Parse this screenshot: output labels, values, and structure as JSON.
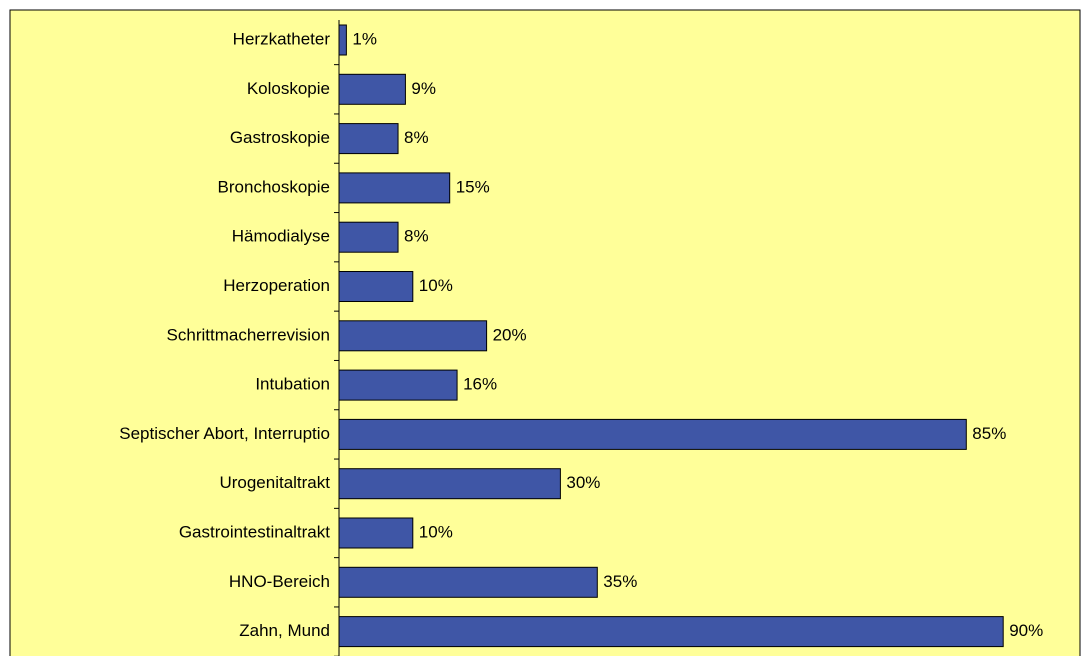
{
  "chart_data": {
    "type": "bar",
    "orientation": "horizontal",
    "categories": [
      "Herzkatheter",
      "Koloskopie",
      "Gastroskopie",
      "Bronchoskopie",
      "Hämodialyse",
      "Herzoperation",
      "Schrittmacherrevision",
      "Intubation",
      "Septischer Abort, Interruptio",
      "Urogenitaltrakt",
      "Gastrointestinaltrakt",
      "HNO-Bereich",
      "Zahn, Mund"
    ],
    "values": [
      1,
      9,
      8,
      15,
      8,
      10,
      20,
      16,
      85,
      30,
      10,
      35,
      90
    ],
    "value_labels": [
      "1%",
      "9%",
      "8%",
      "15%",
      "8%",
      "10%",
      "20%",
      "16%",
      "85%",
      "30%",
      "10%",
      "35%",
      "90%"
    ],
    "color": "#3f56a6",
    "xlim": [
      0,
      100
    ]
  }
}
